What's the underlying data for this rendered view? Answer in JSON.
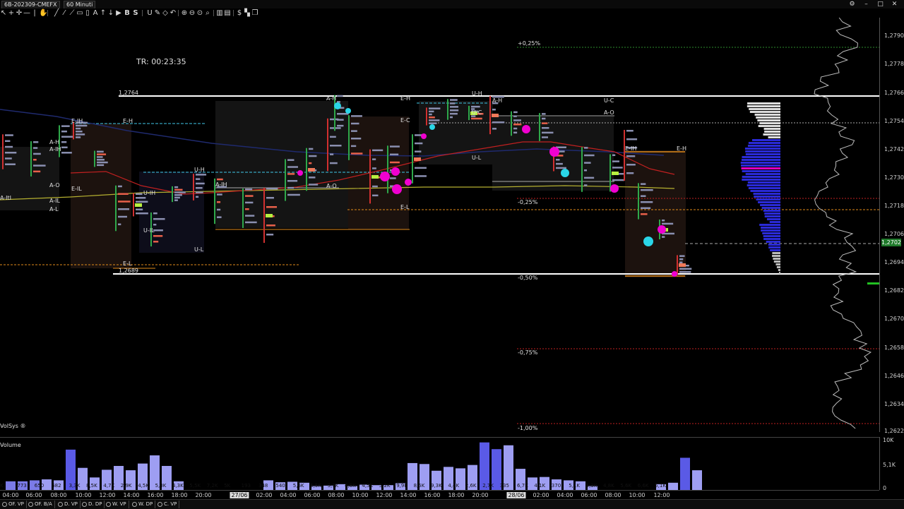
{
  "window": {
    "tab_symbol": "6B-202309-CMEFX",
    "tab_timeframe": "60 Minuti"
  },
  "chart": {
    "timer_label": "TR: 00:23:35",
    "indicator_label": "VolSys ®",
    "current_price": "1,2702",
    "price_ticks": [
      "1,2790",
      "1,2778",
      "1,2766",
      "1,2754",
      "1,2742",
      "1,2730",
      "1,2718",
      "1,2706",
      "1,2694",
      "1,2682",
      "1,2670",
      "1,2658",
      "1,2646",
      "1,2634",
      "1,2622"
    ],
    "level_labels": {
      "high": "1,2764",
      "low": "1,2689",
      "pct_plus_025": "+0,25%",
      "pct_minus_025": "-0,25%",
      "pct_minus_050": "-0,50%",
      "pct_minus_075": "-0,75%",
      "pct_minus_100": "-1,00%"
    },
    "tags": [
      "E-IH",
      "E-H",
      "A-H",
      "A-IH",
      "A-O",
      "A-L",
      "E-IL",
      "E-L",
      "U-IH",
      "U-H",
      "U-L",
      "U-IL",
      "A-H",
      "E-H",
      "E-C",
      "A-IH",
      "A-O",
      "U-H",
      "A-H",
      "A-O",
      "U-C",
      "U-L",
      "E-IH",
      "E-H",
      "E-L",
      "A-ItI",
      "A-IL",
      "U-C"
    ]
  },
  "volume": {
    "title": "Volume",
    "axis_ticks": [
      "10K",
      "5,1K",
      "0"
    ],
    "bars": [
      {
        "v": 1.8,
        "c": "#7b7be8"
      },
      {
        "v": 1.8,
        "c": "#7b7be8"
      },
      {
        "v": 2.0,
        "c": "#7b7be8"
      },
      {
        "v": 2.2,
        "c": "#9e9ef2"
      },
      {
        "v": 2.0,
        "c": "#9e9ef2"
      },
      {
        "v": 8.4,
        "c": "#5a5ae6"
      },
      {
        "v": 4.6,
        "c": "#9e9ef2"
      },
      {
        "v": 2.6,
        "c": "#9e9ef2"
      },
      {
        "v": 4.2,
        "c": "#9e9ef2"
      },
      {
        "v": 5.0,
        "c": "#9e9ef2"
      },
      {
        "v": 4.1,
        "c": "#9e9ef2"
      },
      {
        "v": 5.5,
        "c": "#9e9ef2"
      },
      {
        "v": 7.2,
        "c": "#9e9ef2"
      },
      {
        "v": 5.0,
        "c": "#9e9ef2"
      },
      {
        "v": 1.8,
        "c": "#9e9ef2"
      },
      {
        "v": 2.0,
        "c": "#9e9ef2"
      },
      {
        "v": 1.6,
        "c": "#9e9ef2"
      },
      {
        "v": 1.7,
        "c": "#9e9ef2"
      },
      {
        "v": 1.5,
        "c": "#9e9ef2"
      },
      {
        "v": 0.8,
        "c": "#9e9ef2"
      },
      {
        "v": 0.9,
        "c": "#9e9ef2"
      },
      {
        "v": 1.2,
        "c": "#9e9ef2"
      },
      {
        "v": 0.8,
        "c": "#9e9ef2"
      },
      {
        "v": 1.1,
        "c": "#9e9ef2"
      },
      {
        "v": 1.0,
        "c": "#9e9ef2"
      },
      {
        "v": 1.0,
        "c": "#9e9ef2"
      },
      {
        "v": 1.4,
        "c": "#9e9ef2"
      },
      {
        "v": 5.6,
        "c": "#9e9ef2"
      },
      {
        "v": 5.4,
        "c": "#9e9ef2"
      },
      {
        "v": 4.0,
        "c": "#9e9ef2"
      },
      {
        "v": 4.8,
        "c": "#9e9ef2"
      },
      {
        "v": 4.5,
        "c": "#9e9ef2"
      },
      {
        "v": 5.2,
        "c": "#9e9ef2"
      },
      {
        "v": 9.9,
        "c": "#5a5ae6"
      },
      {
        "v": 8.5,
        "c": "#5a5ae6"
      },
      {
        "v": 9.3,
        "c": "#9e9ef2"
      },
      {
        "v": 4.4,
        "c": "#9e9ef2"
      },
      {
        "v": 2.6,
        "c": "#9e9ef2"
      },
      {
        "v": 2.7,
        "c": "#9e9ef2"
      },
      {
        "v": 2.2,
        "c": "#9e9ef2"
      },
      {
        "v": 2.0,
        "c": "#9e9ef2"
      },
      {
        "v": 1.8,
        "c": "#9e9ef2"
      },
      {
        "v": 0.8,
        "c": "#9e9ef2"
      },
      {
        "v": 1.2,
        "c": "#9e9ef2"
      },
      {
        "v": 1.5,
        "c": "#9e9ef2"
      },
      {
        "v": 6.7,
        "c": "#5a5ae6"
      },
      {
        "v": 4.1,
        "c": "#9e9ef2"
      },
      {
        "v": 0.9,
        "c": "#9e9ef2"
      },
      {
        "v": 1.2,
        "c": "#9e9ef2"
      },
      {
        "v": 1.2,
        "c": "#9e9ef2"
      },
      {
        "v": 5.1,
        "c": "#9e9ef2"
      },
      {
        "v": 5.3,
        "c": "#9e9ef2"
      },
      {
        "v": 4.8,
        "c": "#9e9ef2"
      },
      {
        "v": 5.6,
        "c": "#9e9ef2"
      },
      {
        "v": 6.6,
        "c": "#9e9ef2"
      },
      {
        "v": 5.1,
        "c": "#9e9ef2"
      }
    ],
    "bar_labels": [
      "K",
      "773",
      "650",
      "682",
      "3,3K",
      "8,5K",
      "4,7K",
      "2,9K",
      "4,5K",
      "5,0K",
      "4,3K",
      "5,5K",
      "7,2K",
      "5K",
      "193",
      "348",
      "540",
      "5,6K",
      "5,5K",
      "3,9K",
      "4,8K",
      "4,5K",
      "5,2K",
      "9,9K",
      "8,5K",
      "9,3K",
      "4,4K",
      "2,6K",
      "2,7K",
      "335",
      "6,7K",
      "4,1K",
      "370",
      "5,1K",
      "5,3K",
      "4,8K",
      "5,6K",
      "6,6K",
      "5,1K"
    ]
  },
  "time_axis": [
    "04:00",
    "06:00",
    "08:00",
    "10:00",
    "12:00",
    "14:00",
    "16:00",
    "18:00",
    "20:00",
    "27/06",
    "02:00",
    "04:00",
    "06:00",
    "08:00",
    "10:00",
    "12:00",
    "14:00",
    "16:00",
    "18:00",
    "20:00",
    "28/06",
    "02:00",
    "04:00",
    "06:00",
    "08:00",
    "10:00",
    "12:00"
  ],
  "bottom_tabs": [
    "OF. VP",
    "OF. B/A",
    "D. VP",
    "D. DP",
    "W. VP",
    "W. DP",
    "C. VP"
  ]
}
